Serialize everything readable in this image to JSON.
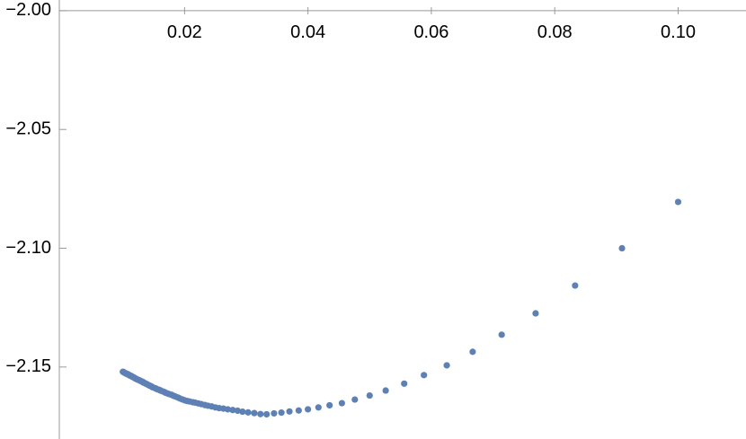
{
  "chart_data": {
    "type": "scatter",
    "color": "#5e81b5",
    "x": [
      0.1,
      0.0909,
      0.0833,
      0.0769,
      0.0714,
      0.0667,
      0.0625,
      0.0588,
      0.0556,
      0.0526,
      0.05,
      0.0476,
      0.0455,
      0.0435,
      0.0417,
      0.04,
      0.0385,
      0.037,
      0.0357,
      0.0345,
      0.0333,
      0.0323,
      0.0313,
      0.0303,
      0.0294,
      0.0286,
      0.0278,
      0.027,
      0.0263,
      0.0256,
      0.025,
      0.0244,
      0.0238,
      0.0233,
      0.0227,
      0.0222,
      0.0217,
      0.0213,
      0.0208,
      0.0204,
      0.02,
      0.0196,
      0.0192,
      0.0189,
      0.0185,
      0.0182,
      0.0179,
      0.0175,
      0.0172,
      0.0169,
      0.0167,
      0.0164,
      0.0161,
      0.0159,
      0.0156,
      0.0154,
      0.0152,
      0.0149,
      0.0147,
      0.0145,
      0.0143,
      0.0141,
      0.0139,
      0.0137,
      0.0135,
      0.0133,
      0.0132,
      0.013,
      0.0128,
      0.0127,
      0.0125,
      0.0123,
      0.0122,
      0.012,
      0.0119,
      0.0118,
      0.0116,
      0.0115,
      0.0114,
      0.0112,
      0.0111,
      0.011,
      0.0109,
      0.0108,
      0.0106,
      0.0105,
      0.0104,
      0.0103,
      0.0102,
      0.0101,
      0.01
    ],
    "values": [
      -2.0805,
      -2.1,
      -2.1157,
      -2.1274,
      -2.1364,
      -2.1436,
      -2.1493,
      -2.1534,
      -2.157,
      -2.1599,
      -2.162,
      -2.1637,
      -2.1652,
      -2.1661,
      -2.167,
      -2.1678,
      -2.1683,
      -2.1687,
      -2.1692,
      -2.1695,
      -2.1699,
      -2.1698,
      -2.1694,
      -2.1691,
      -2.1688,
      -2.1684,
      -2.1681,
      -2.1678,
      -2.1675,
      -2.1673,
      -2.167,
      -2.1666,
      -2.1663,
      -2.166,
      -2.1656,
      -2.1653,
      -2.165,
      -2.1648,
      -2.1645,
      -2.1643,
      -2.164,
      -2.1636,
      -2.1632,
      -2.1628,
      -2.1624,
      -2.1621,
      -2.1617,
      -2.1614,
      -2.1611,
      -2.1608,
      -2.1605,
      -2.1602,
      -2.1599,
      -2.1596,
      -2.1594,
      -2.1591,
      -2.1589,
      -2.1586,
      -2.1583,
      -2.158,
      -2.1578,
      -2.1575,
      -2.1572,
      -2.157,
      -2.1567,
      -2.1565,
      -2.1562,
      -2.156,
      -2.1558,
      -2.1556,
      -2.1554,
      -2.1552,
      -2.155,
      -2.1548,
      -2.1546,
      -2.1544,
      -2.1542,
      -2.154,
      -2.1538,
      -2.1537,
      -2.1535,
      -2.1533,
      -2.1532,
      -2.153,
      -2.1529,
      -2.1527,
      -2.1526,
      -2.1524,
      -2.1523,
      -2.1521,
      -2.152
    ],
    "xlim": [
      -0.0003,
      0.111
    ],
    "ylim": [
      -2.1803,
      -1.9955
    ],
    "xticks": [
      0.02,
      0.04,
      0.06,
      0.08,
      {
        "value": 0.1,
        "label": "0.10"
      }
    ],
    "yticks": [
      {
        "value": -2.0,
        "label": "−2.00"
      },
      {
        "value": -2.05,
        "label": "−2.05"
      },
      {
        "value": -2.1,
        "label": "−2.10"
      },
      {
        "value": -2.15,
        "label": "−2.15"
      }
    ]
  }
}
